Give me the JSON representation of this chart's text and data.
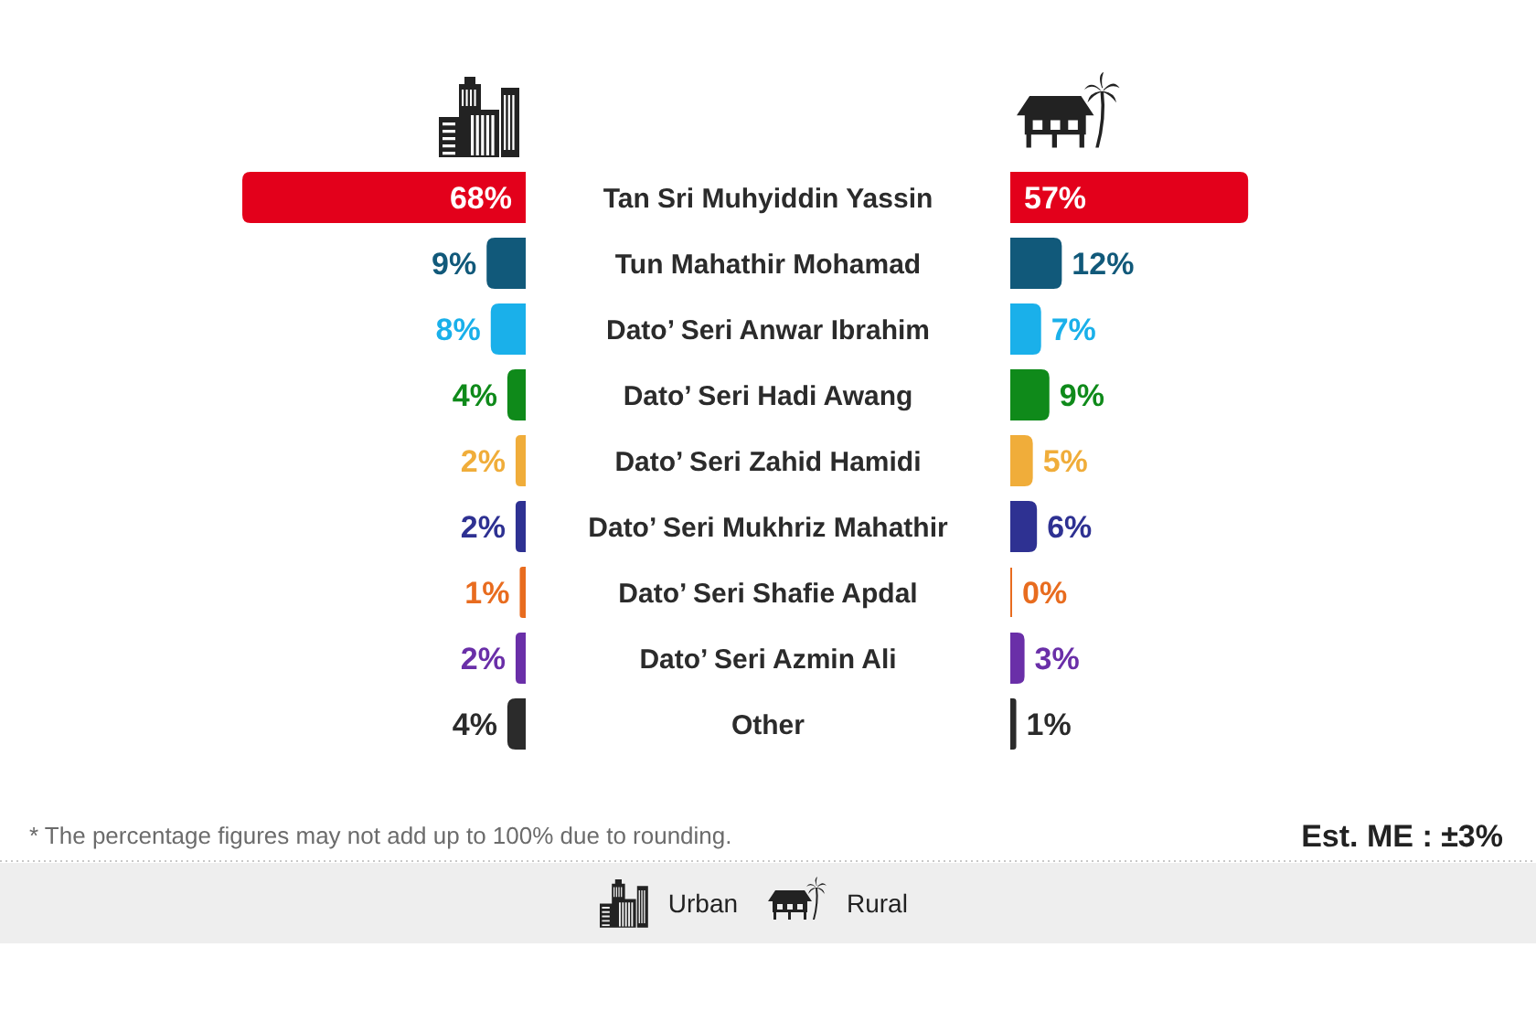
{
  "chart_data": [
    {
      "type": "bar",
      "orientation": "horizontal",
      "legend": "bottom",
      "tick_labels": "y",
      "categories": [
        "Tan Sri Muhyiddin Yassin",
        "Tun Mahathir Mohamad",
        "Dato’ Seri Anwar Ibrahim",
        "Dato’ Seri Hadi Awang",
        "Dato’ Seri Zahid Hamidi",
        "Dato’ Seri Mukhriz Mahathir",
        "Dato’ Seri Shafie Apdal",
        "Dato’ Seri Azmin Ali",
        "Other"
      ],
      "series": [
        {
          "name": "Urban",
          "colors": [
            "#e3001b",
            "#11597a",
            "#1ab0ea",
            "#0f8a1a",
            "#f0ad3a",
            "#2e3192",
            "#e86c1f",
            "#6a2fa8",
            "#2b2b2b"
          ],
          "values": [
            68,
            9,
            8,
            4,
            2,
            2,
            1,
            2,
            4
          ],
          "value_labels": [
            "68%",
            "9%",
            "8%",
            "4%",
            "2%",
            "2%",
            "1%",
            "2%",
            "4%"
          ]
        }
      ],
      "annotations": [
        "* The percentage figures may not add up to 100% due to rounding."
      ]
    },
    {
      "type": "bar",
      "orientation": "horizontal",
      "legend": "bottom",
      "tick_labels": false,
      "categories": [
        null,
        null,
        null,
        null,
        null,
        null,
        null,
        null,
        null
      ],
      "series": [
        {
          "name": "Rural",
          "colors": [
            "#e3001b",
            "#11597a",
            "#1ab0ea",
            "#0f8a1a",
            "#f0ad3a",
            "#2e3192",
            "#e86c1f",
            "#6a2fa8",
            "#2b2b2b"
          ],
          "values": [
            57,
            12,
            7,
            9,
            5,
            6,
            0,
            3,
            1
          ],
          "value_labels": [
            "57%",
            "12%",
            "7%",
            "9%",
            "5%",
            "6%",
            "0%",
            "3%",
            "1%"
          ]
        }
      ],
      "annotations": [
        "Est. ME : ±3%"
      ]
    }
  ]
}
